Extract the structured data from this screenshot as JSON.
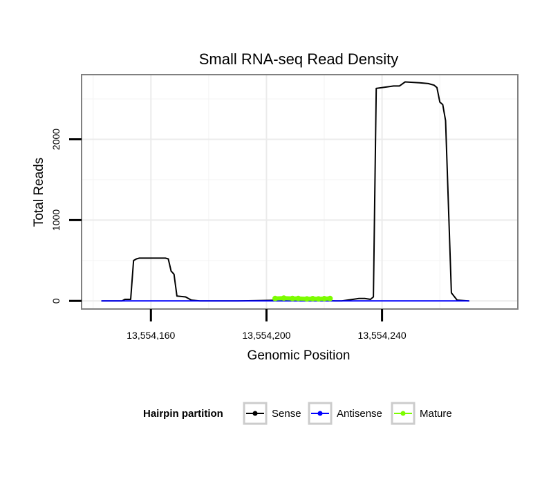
{
  "chart_data": {
    "type": "line",
    "title": "Small RNA-seq Read Density",
    "xlabel": "Genomic Position",
    "ylabel": "Total Reads",
    "xlim": [
      13554136,
      13554287
    ],
    "ylim": [
      -100,
      2800
    ],
    "x_ticks": [
      13554160,
      13554200,
      13554240
    ],
    "x_tick_labels": [
      "13,554,160",
      "13,554,200",
      "13,554,240"
    ],
    "y_ticks": [
      0,
      1000,
      2000
    ],
    "y_tick_labels": [
      "0",
      "1000",
      "2000"
    ],
    "grid": true,
    "legend": {
      "title": "Hairpin partition",
      "position": "bottom",
      "entries": [
        {
          "label": "Sense",
          "color": "#000000"
        },
        {
          "label": "Antisense",
          "color": "#0000ff"
        },
        {
          "label": "Mature",
          "color": "#7cfc00"
        }
      ]
    },
    "series": [
      {
        "name": "Sense",
        "color": "#000000",
        "x": [
          13554143,
          13554150,
          13554151,
          13554153,
          13554154,
          13554155,
          13554156,
          13554165,
          13554166,
          13554167,
          13554168,
          13554169,
          13554172,
          13554174,
          13554177,
          13554185,
          13554190,
          13554206,
          13554216,
          13554224,
          13554226,
          13554232,
          13554234,
          13554236,
          13554237,
          13554238,
          13554244,
          13554246,
          13554248,
          13554253,
          13554256,
          13554258,
          13554259,
          13554260,
          13554261,
          13554262,
          13554264,
          13554266,
          13554270
        ],
        "values": [
          0,
          0,
          20,
          20,
          500,
          520,
          530,
          530,
          520,
          370,
          330,
          60,
          50,
          10,
          0,
          0,
          0,
          10,
          10,
          0,
          0,
          30,
          30,
          20,
          50,
          2630,
          2660,
          2660,
          2710,
          2700,
          2690,
          2670,
          2640,
          2460,
          2430,
          2230,
          100,
          10,
          0
        ]
      },
      {
        "name": "Antisense",
        "color": "#0000ff",
        "x": [
          13554143,
          13554270
        ],
        "values": [
          0,
          0
        ]
      },
      {
        "name": "Mature",
        "color": "#7cfc00",
        "x": [
          13554203,
          13554206,
          13554209,
          13554211,
          13554214,
          13554216,
          13554218,
          13554220,
          13554222
        ],
        "values": [
          30,
          35,
          30,
          30,
          25,
          28,
          25,
          28,
          30
        ]
      }
    ]
  }
}
